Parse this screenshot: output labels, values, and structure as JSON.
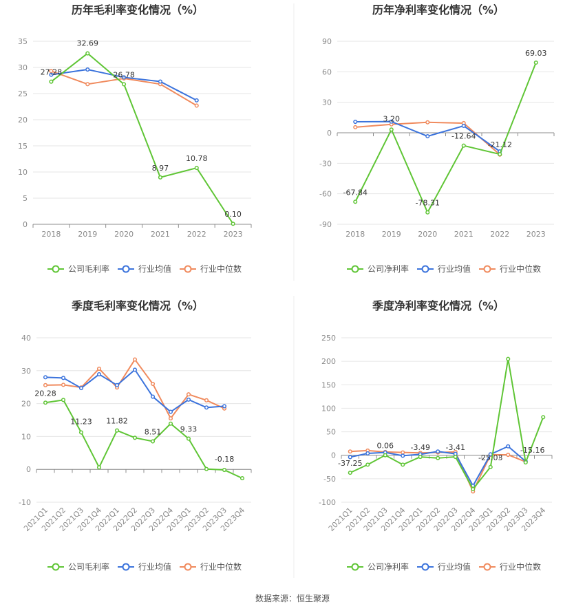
{
  "colors": {
    "company": "#5fc535",
    "industry_avg": "#3b73dc",
    "industry_median": "#f08a5d"
  },
  "legend_icon": "line-circle-marker-icon",
  "source": "数据来源：恒生聚源",
  "chart_data": [
    {
      "type": "line",
      "title": "历年毛利率变化情况（%）",
      "categories": [
        "2018",
        "2019",
        "2020",
        "2021",
        "2022",
        "2023"
      ],
      "ylim": [
        0,
        35
      ],
      "yticks": [
        0,
        5,
        10,
        15,
        20,
        25,
        30,
        35
      ],
      "yticklabels": [
        "0",
        "5",
        "10",
        "15",
        "20",
        "25",
        "30",
        "35"
      ],
      "series": [
        {
          "name": "公司毛利率",
          "role": "company",
          "values": [
            27.28,
            32.69,
            26.78,
            8.97,
            10.78,
            0.1
          ],
          "labels": [
            "27.28",
            "32.69",
            "26.78",
            "8.97",
            "10.78",
            "0.10"
          ]
        },
        {
          "name": "行业均值",
          "role": "industry_avg",
          "values": [
            28.6,
            29.6,
            28.1,
            27.3,
            23.7,
            null
          ]
        },
        {
          "name": "行业中位数",
          "role": "industry_median",
          "values": [
            29.3,
            26.8,
            27.9,
            26.8,
            22.7,
            null
          ]
        }
      ]
    },
    {
      "type": "line",
      "title": "历年净利率变化情况（%）",
      "categories": [
        "2018",
        "2019",
        "2020",
        "2021",
        "2022",
        "2023"
      ],
      "ylim": [
        -90,
        90
      ],
      "yticks": [
        -90,
        -60,
        -30,
        0,
        30,
        60,
        90
      ],
      "yticklabels": [
        "-90",
        "-60",
        "-30",
        "0",
        "30",
        "60",
        "90"
      ],
      "series": [
        {
          "name": "公司净利率",
          "role": "company",
          "values": [
            -67.84,
            3.2,
            -78.31,
            -12.64,
            -21.12,
            69.03
          ],
          "labels": [
            "-67.84",
            "3.20",
            "-78.31",
            "-12.64",
            "-21.12",
            "69.03"
          ]
        },
        {
          "name": "行业均值",
          "role": "industry_avg",
          "values": [
            10.8,
            11.0,
            -3.4,
            6.8,
            -18.3,
            null
          ]
        },
        {
          "name": "行业中位数",
          "role": "industry_median",
          "values": [
            5.5,
            8.3,
            10.3,
            9.5,
            -21.5,
            null
          ]
        }
      ]
    },
    {
      "type": "line",
      "title": "季度毛利率变化情况（%）",
      "categories": [
        "2021Q1",
        "2021Q2",
        "2021Q3",
        "2021Q4",
        "2022Q1",
        "2022Q2",
        "2022Q3",
        "2022Q4",
        "2023Q1",
        "2023Q2",
        "2023Q3",
        "2023Q4"
      ],
      "ylim": [
        -10,
        40
      ],
      "yticks": [
        -10,
        0,
        10,
        20,
        30,
        40
      ],
      "yticklabels": [
        "-10",
        "0",
        "10",
        "20",
        "30",
        "40"
      ],
      "series": [
        {
          "name": "公司毛利率",
          "role": "company",
          "values": [
            20.28,
            21.1,
            11.23,
            0.6,
            11.82,
            9.6,
            8.51,
            13.9,
            9.33,
            0.1,
            -0.18,
            -2.7
          ],
          "labels": [
            "20.28",
            "",
            "11.23",
            "",
            "11.82",
            "",
            "8.51",
            "",
            "9.33",
            "",
            "-0.18",
            ""
          ]
        },
        {
          "name": "行业均值",
          "role": "industry_avg",
          "values": [
            28.0,
            27.8,
            24.7,
            28.9,
            25.6,
            30.3,
            22.1,
            17.5,
            21.2,
            18.8,
            19.2,
            null
          ]
        },
        {
          "name": "行业中位数",
          "role": "industry_median",
          "values": [
            25.6,
            25.7,
            24.9,
            30.6,
            24.9,
            33.4,
            26.0,
            15.5,
            22.8,
            21.0,
            18.5,
            null
          ]
        }
      ]
    },
    {
      "type": "line",
      "title": "季度净利率变化情况（%）",
      "categories": [
        "2021Q1",
        "2021Q2",
        "2021Q3",
        "2021Q4",
        "2022Q1",
        "2022Q2",
        "2022Q3",
        "2022Q4",
        "2023Q1",
        "2023Q2",
        "2023Q3",
        "2023Q4"
      ],
      "ylim": [
        -100,
        250
      ],
      "yticks": [
        -100,
        -50,
        0,
        50,
        100,
        150,
        200,
        250
      ],
      "yticklabels": [
        "-100",
        "-50",
        "0",
        "50",
        "100",
        "150",
        "200",
        "250"
      ],
      "series": [
        {
          "name": "公司净利率",
          "role": "company",
          "values": [
            -37.25,
            -20.0,
            0.06,
            -20.0,
            -3.49,
            -6.0,
            -3.41,
            -72.0,
            -25.03,
            205.0,
            -15.16,
            81.0
          ],
          "labels": [
            "-37.25",
            "",
            "0.06",
            "",
            "-3.49",
            "",
            "-3.41",
            "",
            "-25.03",
            "",
            "-15.16",
            ""
          ]
        },
        {
          "name": "行业均值",
          "role": "industry_avg",
          "values": [
            -4.0,
            4.0,
            6.0,
            -1.0,
            2.0,
            8.0,
            3.0,
            -65.0,
            2.0,
            19.0,
            -13.0,
            null
          ]
        },
        {
          "name": "行业中位数",
          "role": "industry_median",
          "values": [
            8.0,
            10.0,
            7.0,
            6.0,
            5.0,
            6.0,
            7.0,
            -77.0,
            1.0,
            1.0,
            -14.0,
            null
          ]
        }
      ]
    }
  ]
}
